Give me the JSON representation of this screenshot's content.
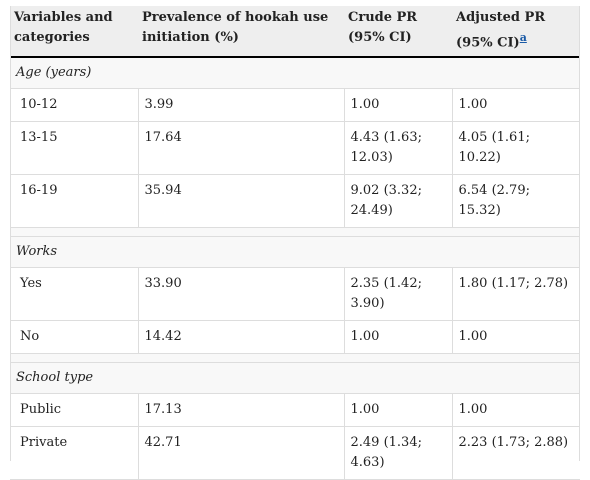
{
  "headers": [
    [
      "Variables and",
      "categories"
    ],
    [
      "Prevalence of hookah use",
      "initiation (%)"
    ],
    [
      "Crude PR",
      "(95% CI)"
    ],
    [
      "Adjusted PR",
      "(95% CI)",
      "a"
    ]
  ],
  "sections": [
    {
      "title": "Age (years)",
      "rows": [
        {
          "category": "10-12",
          "prevalence": "3.99",
          "crude": [
            "1.00"
          ],
          "adjusted": [
            "1.00"
          ]
        },
        {
          "category": "13-15",
          "prevalence": "17.64",
          "crude": [
            "4.43 (1.63;",
            "12.03)"
          ],
          "adjusted": [
            "4.05 (1.61;",
            "10.22)"
          ]
        },
        {
          "category": "16-19",
          "prevalence": "35.94",
          "crude": [
            "9.02 (3.32;",
            "24.49)"
          ],
          "adjusted": [
            "6.54 (2.79;",
            "15.32)"
          ]
        }
      ]
    },
    {
      "title": "Works",
      "rows": [
        {
          "category": "Yes",
          "prevalence": "33.90",
          "crude": [
            "2.35 (1.42;",
            "3.90)"
          ],
          "adjusted": [
            "1.80 (1.17; 2.78)"
          ]
        },
        {
          "category": "No",
          "prevalence": "14.42",
          "crude": [
            "1.00"
          ],
          "adjusted": [
            "1.00"
          ]
        }
      ]
    },
    {
      "title": "School type",
      "rows": [
        {
          "category": "Public",
          "prevalence": "17.13",
          "crude": [
            "1.00"
          ],
          "adjusted": [
            "1.00"
          ]
        },
        {
          "category": "Private",
          "prevalence": "42.71",
          "crude": [
            "2.49 (1.34;",
            "4.63)"
          ],
          "adjusted": [
            "2.23 (1.73; 2.88)"
          ]
        }
      ]
    }
  ]
}
